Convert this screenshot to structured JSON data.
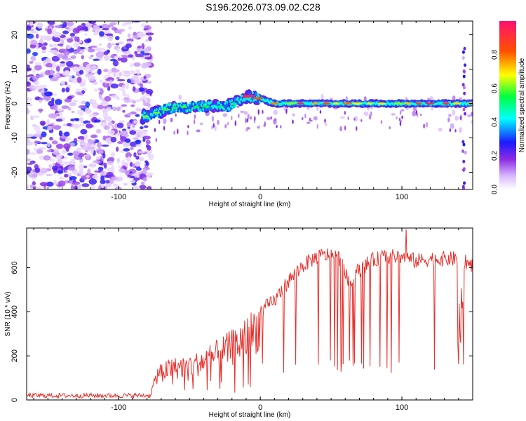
{
  "title": "S196.2026.073.09.02.C28",
  "chart_data": [
    {
      "type": "heatmap",
      "xlabel": "Height of straight line (km)",
      "ylabel": "Frequency (Hz)",
      "xlim": [
        -165,
        150
      ],
      "ylim": [
        -25,
        24
      ],
      "x_ticks": [
        -100,
        0,
        100
      ],
      "y_ticks": [
        -20,
        -10,
        0,
        10,
        20
      ],
      "colorbar": {
        "label": "Normalized spectral amplitude",
        "range": [
          0,
          1
        ],
        "ticks": [
          0.0,
          0.2,
          0.4,
          0.6,
          0.8
        ],
        "stops": [
          {
            "v": 0.0,
            "color": "#ffffff"
          },
          {
            "v": 0.08,
            "color": "#d9b8ff"
          },
          {
            "v": 0.18,
            "color": "#8a2be2"
          },
          {
            "v": 0.28,
            "color": "#1a1aff"
          },
          {
            "v": 0.42,
            "color": "#00ffff"
          },
          {
            "v": 0.55,
            "color": "#00ff40"
          },
          {
            "v": 0.68,
            "color": "#ffff00"
          },
          {
            "v": 0.82,
            "color": "#ff5000"
          },
          {
            "v": 1.0,
            "color": "#ff1070"
          }
        ]
      },
      "noise_region_x": [
        -165,
        -83
      ],
      "ridge": [
        {
          "x": -83,
          "y": -4
        },
        {
          "x": -75,
          "y": -3
        },
        {
          "x": -65,
          "y": -1.5
        },
        {
          "x": -55,
          "y": -1
        },
        {
          "x": -45,
          "y": -1
        },
        {
          "x": -35,
          "y": -0.8
        },
        {
          "x": -25,
          "y": -1
        },
        {
          "x": -18,
          "y": 0
        },
        {
          "x": -12,
          "y": 2
        },
        {
          "x": -5,
          "y": 2
        },
        {
          "x": 3,
          "y": 1
        },
        {
          "x": 10,
          "y": 0
        },
        {
          "x": 50,
          "y": 0
        },
        {
          "x": 100,
          "y": 0
        },
        {
          "x": 150,
          "y": 0
        }
      ]
    },
    {
      "type": "line",
      "xlabel": "Height of straight line (km)",
      "ylabel": "SNR (10 * v/v)",
      "xlim": [
        -165,
        150
      ],
      "ylim": [
        0,
        780
      ],
      "x_ticks": [
        -100,
        0,
        100
      ],
      "y_ticks": [
        0,
        200,
        400,
        600
      ],
      "color": "#e8302c",
      "envelope": [
        {
          "x": -165,
          "y": 20
        },
        {
          "x": -78,
          "y": 20
        },
        {
          "x": -72,
          "y": 150
        },
        {
          "x": -60,
          "y": 170
        },
        {
          "x": -45,
          "y": 190
        },
        {
          "x": -30,
          "y": 240
        },
        {
          "x": -20,
          "y": 280
        },
        {
          "x": -10,
          "y": 330
        },
        {
          "x": 0,
          "y": 400
        },
        {
          "x": 10,
          "y": 450
        },
        {
          "x": 20,
          "y": 540
        },
        {
          "x": 30,
          "y": 610
        },
        {
          "x": 40,
          "y": 650
        },
        {
          "x": 50,
          "y": 660
        },
        {
          "x": 57,
          "y": 640
        },
        {
          "x": 63,
          "y": 520
        },
        {
          "x": 68,
          "y": 580
        },
        {
          "x": 78,
          "y": 630
        },
        {
          "x": 88,
          "y": 650
        },
        {
          "x": 100,
          "y": 650
        },
        {
          "x": 110,
          "y": 630
        },
        {
          "x": 120,
          "y": 640
        },
        {
          "x": 140,
          "y": 640
        },
        {
          "x": 150,
          "y": 610
        }
      ],
      "peak": {
        "x": 103,
        "y": 775
      }
    }
  ]
}
